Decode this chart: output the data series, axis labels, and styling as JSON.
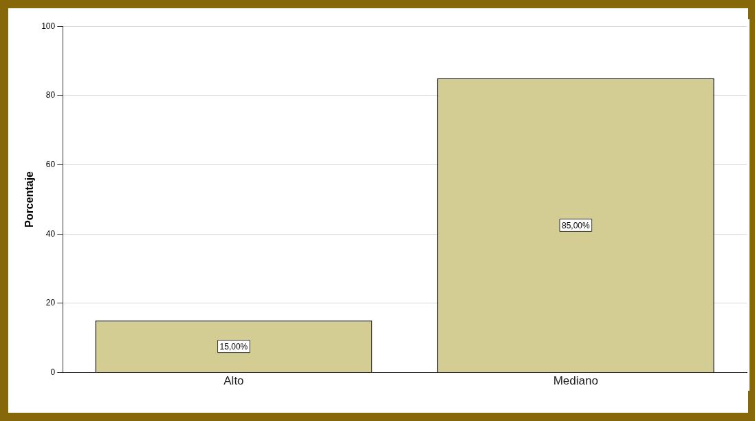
{
  "chart_data": {
    "type": "bar",
    "ylabel": "Porcentaje",
    "categories": [
      "Alto",
      "Mediano"
    ],
    "values": [
      15,
      85
    ],
    "value_labels": [
      "15,00%",
      "85,00%"
    ],
    "color": "#d3cd93",
    "ylim": [
      0,
      100
    ],
    "yticks": [
      0,
      20,
      40,
      60,
      80,
      100
    ],
    "grid": "y"
  }
}
